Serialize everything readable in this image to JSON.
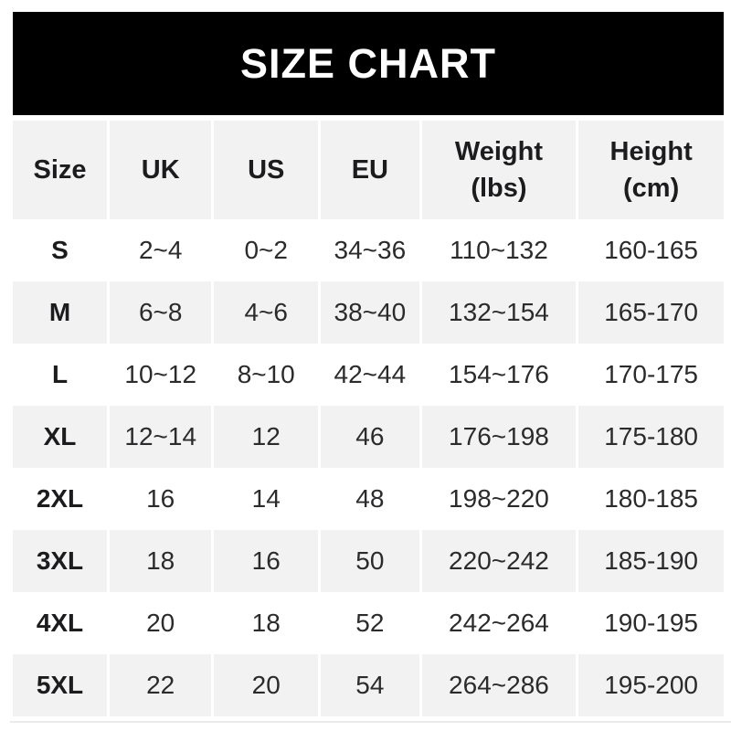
{
  "title": "SIZE CHART",
  "colors": {
    "banner_bg": "#000000",
    "banner_text": "#ffffff",
    "row_alt_bg": "#f2f2f2",
    "header_text": "#1c1c1e",
    "cell_text": "#2b2b2d"
  },
  "table": {
    "columns": [
      {
        "label": "Size",
        "sub": ""
      },
      {
        "label": "UK",
        "sub": ""
      },
      {
        "label": "US",
        "sub": ""
      },
      {
        "label": "EU",
        "sub": ""
      },
      {
        "label": "Weight",
        "sub": "(lbs)"
      },
      {
        "label": "Height",
        "sub": "(cm)"
      }
    ]
  },
  "chart_data": {
    "type": "table",
    "title": "SIZE CHART",
    "columns": [
      "Size",
      "UK",
      "US",
      "EU",
      "Weight (lbs)",
      "Height (cm)"
    ],
    "rows": [
      [
        "S",
        "2~4",
        "0~2",
        "34~36",
        "110~132",
        "160-165"
      ],
      [
        "M",
        "6~8",
        "4~6",
        "38~40",
        "132~154",
        "165-170"
      ],
      [
        "L",
        "10~12",
        "8~10",
        "42~44",
        "154~176",
        "170-175"
      ],
      [
        "XL",
        "12~14",
        "12",
        "46",
        "176~198",
        "175-180"
      ],
      [
        "2XL",
        "16",
        "14",
        "48",
        "198~220",
        "180-185"
      ],
      [
        "3XL",
        "18",
        "16",
        "50",
        "220~242",
        "185-190"
      ],
      [
        "4XL",
        "20",
        "18",
        "52",
        "242~264",
        "190-195"
      ],
      [
        "5XL",
        "22",
        "20",
        "54",
        "264~286",
        "195-200"
      ]
    ]
  }
}
